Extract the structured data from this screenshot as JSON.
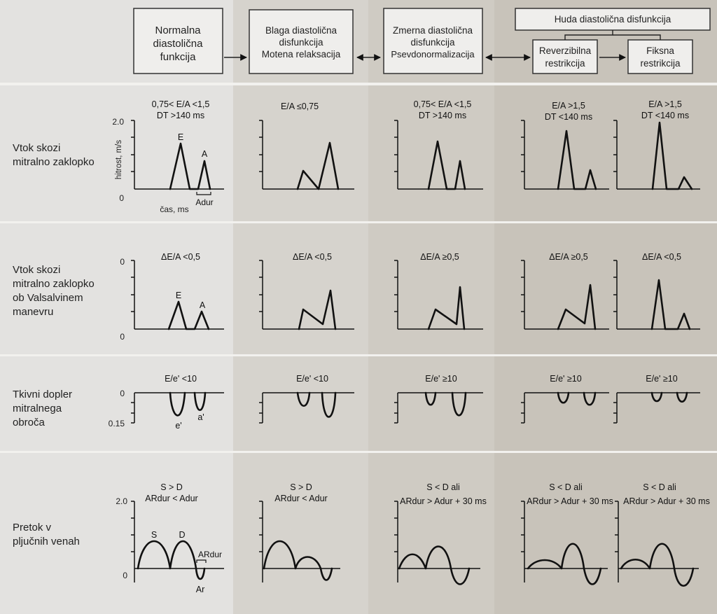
{
  "header": {
    "stage_normal": [
      "Normalna",
      "diastolična",
      "funkcija"
    ],
    "stage_mild": [
      "Blaga diastolična",
      "disfunkcija",
      "Motena relaksacija"
    ],
    "stage_moderate": [
      "Zmerna diastolična",
      "disfunkcija",
      "Psevdonormalizacija"
    ],
    "stage_severe": "Huda diastolična disfunkcija",
    "stage_reversible": [
      "Reverzibilna",
      "restrikcija"
    ],
    "stage_fixed": [
      "Fiksna",
      "restrikcija"
    ]
  },
  "rows": [
    {
      "label": [
        "Vtok skozi",
        "mitralno zaklopko"
      ],
      "criteria": [
        [
          "0,75< E/A <1,5",
          "DT >140 ms"
        ],
        [
          "E/A ≤0,75"
        ],
        [
          "0,75< E/A <1,5",
          "DT >140 ms"
        ],
        [
          "E/A >1,5",
          "DT <140 ms"
        ],
        [
          "E/A >1,5",
          "DT <140 ms"
        ]
      ],
      "axis": {
        "top": "2.0",
        "bottom": "0",
        "ylabel": "hitrost, m/s",
        "xlabel": "čas, ms"
      },
      "annotations": {
        "peak1": "E",
        "peak2": "A",
        "duration": "Adur"
      }
    },
    {
      "label": [
        "Vtok skozi",
        "mitralno zaklopko",
        "ob Valsalvinem",
        "manevru"
      ],
      "criteria": [
        [
          "ΔE/A <0,5"
        ],
        [
          "ΔE/A <0,5"
        ],
        [
          "ΔE/A ≥0,5"
        ],
        [
          "ΔE/A ≥0,5"
        ],
        [
          "ΔE/A <0,5"
        ]
      ],
      "axis": {
        "top": "0",
        "bottom": "0"
      },
      "annotations": {
        "peak1": "E",
        "peak2": "A"
      }
    },
    {
      "label": [
        "Tkivni dopler",
        "mitralnega",
        "obroča"
      ],
      "criteria": [
        [
          "E/e' <10"
        ],
        [
          "E/e' <10"
        ],
        [
          "E/e' ≥10"
        ],
        [
          "E/e' ≥10"
        ],
        [
          "E/e' ≥10"
        ]
      ],
      "axis": {
        "top": "0",
        "bottom": "0.15"
      },
      "annotations": {
        "peak1": "e'",
        "peak2": "a'"
      }
    },
    {
      "label": [
        "Pretok v",
        "pljučnih venah"
      ],
      "criteria": [
        [
          "S > D",
          "ARdur < Adur"
        ],
        [
          "S > D",
          "ARdur < Adur"
        ],
        [
          "S < D ali",
          "ARdur > Adur + 30 ms"
        ],
        [
          "S < D ali",
          "ARdur > Adur + 30 ms"
        ],
        [
          "S < D  ali",
          "ARdur > Adur + 30 ms"
        ]
      ],
      "axis": {
        "top": "2.0",
        "bottom": "0"
      },
      "annotations": {
        "peak1": "S",
        "peak2": "D",
        "duration": "ARdur",
        "reversal": "Ar"
      }
    }
  ],
  "colors": {
    "col_normal": "#e3e2e0",
    "col_mild": "#d6d3cd",
    "col_moderate": "#cfcbc3",
    "col_severe": "#c8c3ba",
    "ink": "#111111",
    "box_fill": "#efeeec"
  }
}
